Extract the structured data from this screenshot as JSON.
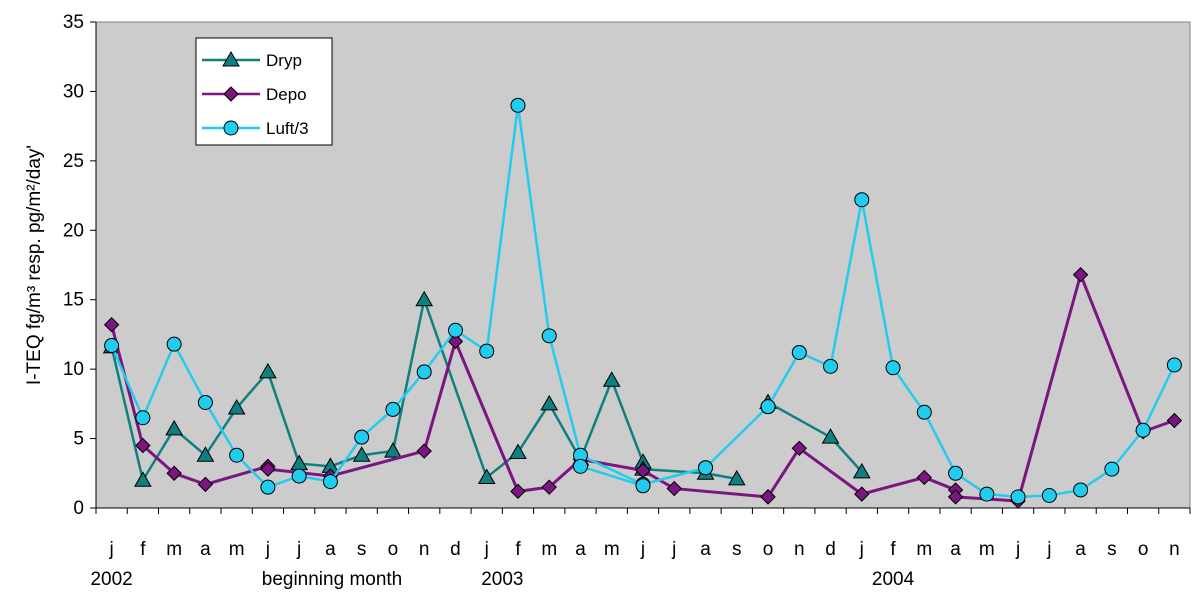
{
  "chart_data": {
    "type": "line",
    "ylabel": "I-TEQ  fg/m³  resp. pg/m²/day'",
    "xlabel": "beginning month",
    "ylim": [
      0,
      35
    ],
    "yticks": [
      0,
      5,
      10,
      15,
      20,
      25,
      30,
      35
    ],
    "grid": false,
    "legend_position": "top-left",
    "x_categories": [
      "j",
      "f",
      "m",
      "a",
      "m",
      "j",
      "j",
      "a",
      "s",
      "o",
      "n",
      "d",
      "j",
      "f",
      "m",
      "a",
      "m",
      "j",
      "j",
      "a",
      "s",
      "o",
      "n",
      "d",
      "j",
      "f",
      "m",
      "a",
      "m",
      "j",
      "j",
      "a",
      "s",
      "o",
      "n"
    ],
    "year_labels": [
      {
        "label": "2002",
        "at_index": 0
      },
      {
        "label": "2003",
        "at_index": 12.5
      },
      {
        "label": "2004",
        "at_index": 25
      }
    ],
    "series": [
      {
        "name": "Dryp",
        "color": "#0f7f7f",
        "marker": "triangle",
        "segments": [
          [
            [
              0,
              11.6
            ],
            [
              1,
              2.0
            ],
            [
              2,
              5.7
            ],
            [
              3,
              3.8
            ],
            [
              4,
              7.2
            ],
            [
              5,
              9.8
            ],
            [
              6,
              3.2
            ],
            [
              7,
              3.0
            ],
            [
              8,
              3.8
            ],
            [
              9,
              4.1
            ],
            [
              10,
              15.0
            ],
            [
              12,
              2.2
            ],
            [
              13,
              4.0
            ],
            [
              14,
              7.5
            ],
            [
              15,
              3.5
            ],
            [
              16,
              9.2
            ],
            [
              17,
              3.3
            ]
          ],
          [
            [
              17,
              2.8
            ],
            [
              19,
              2.5
            ],
            [
              20,
              2.1
            ]
          ],
          [
            [
              21,
              7.6
            ],
            [
              23,
              5.1
            ],
            [
              24,
              2.6
            ]
          ]
        ]
      },
      {
        "name": "Depo",
        "color": "#7b1580",
        "marker": "diamond",
        "segments": [
          [
            [
              0,
              13.2
            ],
            [
              1,
              4.5
            ],
            [
              2,
              2.5
            ],
            [
              3,
              1.7
            ],
            [
              5,
              3.0
            ]
          ],
          [
            [
              5,
              2.8
            ],
            [
              7,
              2.3
            ],
            [
              10,
              4.1
            ],
            [
              11,
              12.0
            ],
            [
              13,
              1.2
            ],
            [
              14,
              1.5
            ],
            [
              15,
              3.5
            ],
            [
              17,
              2.7
            ],
            [
              18,
              1.4
            ],
            [
              21,
              0.8
            ]
          ],
          [
            [
              21,
              0.8
            ],
            [
              22,
              4.3
            ],
            [
              24,
              1.0
            ],
            [
              26,
              2.2
            ],
            [
              27,
              1.3
            ]
          ],
          [
            [
              27,
              0.8
            ],
            [
              29,
              0.5
            ],
            [
              31,
              16.8
            ],
            [
              33,
              5.5
            ],
            [
              34,
              6.3
            ]
          ]
        ]
      },
      {
        "name": "Luft/3",
        "color": "#22ccee",
        "marker": "circle",
        "segments": [
          [
            [
              0,
              11.7
            ],
            [
              1,
              6.5
            ],
            [
              2,
              11.8
            ],
            [
              3,
              7.6
            ],
            [
              4,
              3.8
            ],
            [
              5,
              1.5
            ],
            [
              6,
              2.3
            ],
            [
              7,
              1.9
            ],
            [
              8,
              5.1
            ],
            [
              9,
              7.1
            ],
            [
              10,
              9.8
            ],
            [
              11,
              12.8
            ],
            [
              12,
              11.3
            ],
            [
              13,
              29.0
            ],
            [
              14,
              12.4
            ],
            [
              15,
              3.8
            ],
            [
              17,
              1.7
            ],
            [
              19,
              2.9
            ]
          ],
          [
            [
              15,
              3.0
            ],
            [
              17,
              1.6
            ]
          ],
          [
            [
              19,
              2.9
            ],
            [
              21,
              7.3
            ]
          ],
          [
            [
              21,
              7.3
            ],
            [
              22,
              11.2
            ],
            [
              23,
              10.2
            ],
            [
              24,
              22.2
            ],
            [
              25,
              10.1
            ],
            [
              26,
              6.9
            ],
            [
              27,
              2.5
            ],
            [
              28,
              1.0
            ],
            [
              29,
              0.8
            ],
            [
              30,
              0.9
            ],
            [
              31,
              1.3
            ],
            [
              32,
              2.8
            ],
            [
              33,
              5.6
            ],
            [
              34,
              10.3
            ]
          ]
        ]
      }
    ]
  }
}
